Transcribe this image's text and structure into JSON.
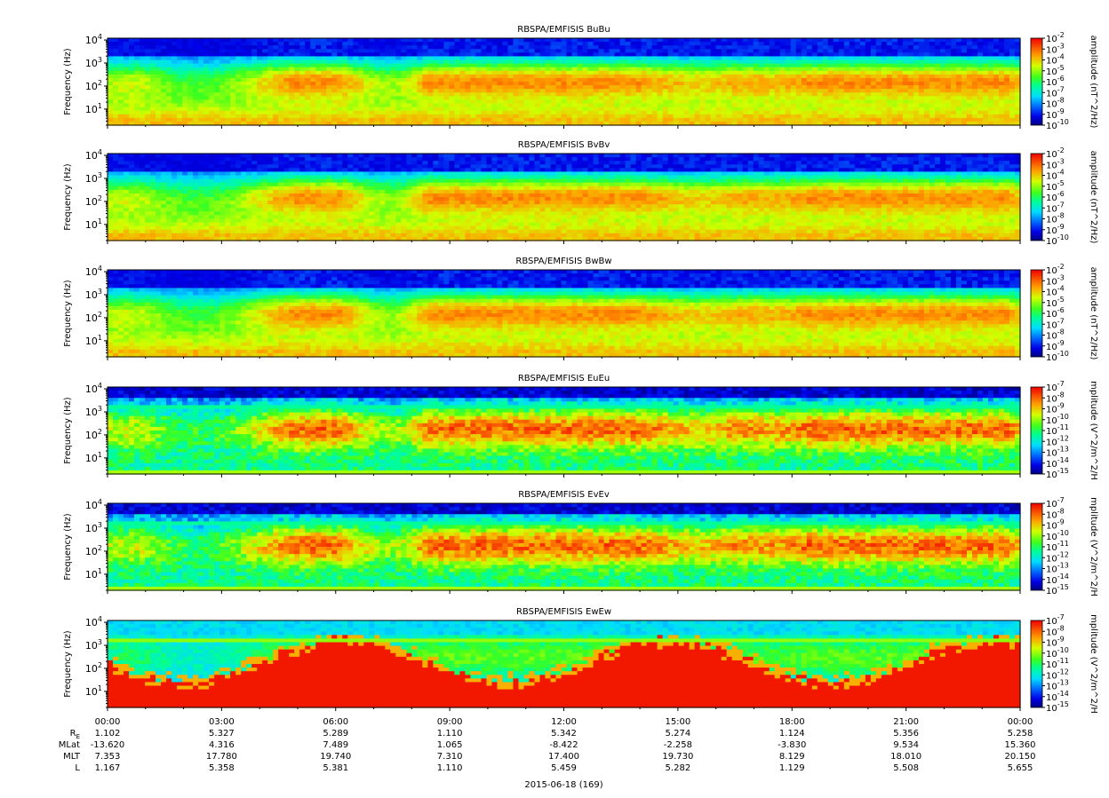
{
  "chart_data": [
    {
      "type": "heatmap",
      "title": "RBSPA/EMFISIS  BuBu",
      "ylabel": "Frequency (Hz)",
      "yscale": "log",
      "ylim": [
        2,
        12000
      ],
      "yticks": [
        {
          "base": "10",
          "exp": "1"
        },
        {
          "base": "10",
          "exp": "2"
        },
        {
          "base": "10",
          "exp": "3"
        },
        {
          "base": "10",
          "exp": "4"
        }
      ],
      "xlim": [
        "00:00",
        "24:00"
      ],
      "colorbar": {
        "label": "amplitude (nT^2/Hz)",
        "scale": "log",
        "range": [
          -10,
          -2
        ],
        "ticks": [
          {
            "base": "10",
            "exp": "-2"
          },
          {
            "base": "10",
            "exp": "-3"
          },
          {
            "base": "10",
            "exp": "-4"
          },
          {
            "base": "10",
            "exp": "-5"
          },
          {
            "base": "10",
            "exp": "-6"
          },
          {
            "base": "10",
            "exp": "-7"
          },
          {
            "base": "10",
            "exp": "-8"
          },
          {
            "base": "10",
            "exp": "-9"
          },
          {
            "base": "10",
            "exp": "-10"
          }
        ]
      },
      "style": "mag"
    },
    {
      "type": "heatmap",
      "title": "RBSPA/EMFISIS  BvBv",
      "ylabel": "Frequency (Hz)",
      "yscale": "log",
      "ylim": [
        2,
        12000
      ],
      "yticks": [
        {
          "base": "10",
          "exp": "1"
        },
        {
          "base": "10",
          "exp": "2"
        },
        {
          "base": "10",
          "exp": "3"
        },
        {
          "base": "10",
          "exp": "4"
        }
      ],
      "xlim": [
        "00:00",
        "24:00"
      ],
      "colorbar": {
        "label": "amplitude (nT^2/Hz)",
        "scale": "log",
        "range": [
          -10,
          -2
        ],
        "ticks": [
          {
            "base": "10",
            "exp": "-2"
          },
          {
            "base": "10",
            "exp": "-3"
          },
          {
            "base": "10",
            "exp": "-4"
          },
          {
            "base": "10",
            "exp": "-5"
          },
          {
            "base": "10",
            "exp": "-6"
          },
          {
            "base": "10",
            "exp": "-7"
          },
          {
            "base": "10",
            "exp": "-8"
          },
          {
            "base": "10",
            "exp": "-9"
          },
          {
            "base": "10",
            "exp": "-10"
          }
        ]
      },
      "style": "mag"
    },
    {
      "type": "heatmap",
      "title": "RBSPA/EMFISIS  BwBw",
      "ylabel": "Frequency (Hz)",
      "yscale": "log",
      "ylim": [
        2,
        12000
      ],
      "yticks": [
        {
          "base": "10",
          "exp": "1"
        },
        {
          "base": "10",
          "exp": "2"
        },
        {
          "base": "10",
          "exp": "3"
        },
        {
          "base": "10",
          "exp": "4"
        }
      ],
      "xlim": [
        "00:00",
        "24:00"
      ],
      "colorbar": {
        "label": "amplitude (nT^2/Hz)",
        "scale": "log",
        "range": [
          -10,
          -2
        ],
        "ticks": [
          {
            "base": "10",
            "exp": "-2"
          },
          {
            "base": "10",
            "exp": "-3"
          },
          {
            "base": "10",
            "exp": "-4"
          },
          {
            "base": "10",
            "exp": "-5"
          },
          {
            "base": "10",
            "exp": "-6"
          },
          {
            "base": "10",
            "exp": "-7"
          },
          {
            "base": "10",
            "exp": "-8"
          },
          {
            "base": "10",
            "exp": "-9"
          },
          {
            "base": "10",
            "exp": "-10"
          }
        ]
      },
      "style": "mag"
    },
    {
      "type": "heatmap",
      "title": "RBSPA/EMFISIS  EuEu",
      "ylabel": "Frequency (Hz)",
      "yscale": "log",
      "ylim": [
        2,
        12000
      ],
      "yticks": [
        {
          "base": "10",
          "exp": "1"
        },
        {
          "base": "10",
          "exp": "2"
        },
        {
          "base": "10",
          "exp": "3"
        },
        {
          "base": "10",
          "exp": "4"
        }
      ],
      "xlim": [
        "00:00",
        "24:00"
      ],
      "colorbar": {
        "label": "mplitude (V^2/m^2/H",
        "scale": "log",
        "range": [
          -15,
          -7
        ],
        "ticks": [
          {
            "base": "10",
            "exp": "-7"
          },
          {
            "base": "10",
            "exp": "-8"
          },
          {
            "base": "10",
            "exp": "-9"
          },
          {
            "base": "10",
            "exp": "-10"
          },
          {
            "base": "10",
            "exp": "-11"
          },
          {
            "base": "10",
            "exp": "-12"
          },
          {
            "base": "10",
            "exp": "-13"
          },
          {
            "base": "10",
            "exp": "-14"
          },
          {
            "base": "10",
            "exp": "-15"
          }
        ]
      },
      "style": "elec"
    },
    {
      "type": "heatmap",
      "title": "RBSPA/EMFISIS  EvEv",
      "ylabel": "Frequency (Hz)",
      "yscale": "log",
      "ylim": [
        2,
        12000
      ],
      "yticks": [
        {
          "base": "10",
          "exp": "1"
        },
        {
          "base": "10",
          "exp": "2"
        },
        {
          "base": "10",
          "exp": "3"
        },
        {
          "base": "10",
          "exp": "4"
        }
      ],
      "xlim": [
        "00:00",
        "24:00"
      ],
      "colorbar": {
        "label": "mplitude (V^2/m^2/H",
        "scale": "log",
        "range": [
          -15,
          -7
        ],
        "ticks": [
          {
            "base": "10",
            "exp": "-7"
          },
          {
            "base": "10",
            "exp": "-8"
          },
          {
            "base": "10",
            "exp": "-9"
          },
          {
            "base": "10",
            "exp": "-10"
          },
          {
            "base": "10",
            "exp": "-11"
          },
          {
            "base": "10",
            "exp": "-12"
          },
          {
            "base": "10",
            "exp": "-13"
          },
          {
            "base": "10",
            "exp": "-14"
          },
          {
            "base": "10",
            "exp": "-15"
          }
        ]
      },
      "style": "elec"
    },
    {
      "type": "heatmap",
      "title": "RBSPA/EMFISIS  EwEw",
      "ylabel": "Frequency (Hz)",
      "yscale": "log",
      "ylim": [
        2,
        12000
      ],
      "yticks": [
        {
          "base": "10",
          "exp": "1"
        },
        {
          "base": "10",
          "exp": "2"
        },
        {
          "base": "10",
          "exp": "3"
        },
        {
          "base": "10",
          "exp": "4"
        }
      ],
      "xlim": [
        "00:00",
        "24:00"
      ],
      "colorbar": {
        "label": "mplitude (V^2/m^2/H",
        "scale": "log",
        "range": [
          -15,
          -7
        ],
        "ticks": [
          {
            "base": "10",
            "exp": "-7"
          },
          {
            "base": "10",
            "exp": "-8"
          },
          {
            "base": "10",
            "exp": "-9"
          },
          {
            "base": "10",
            "exp": "-10"
          },
          {
            "base": "10",
            "exp": "-11"
          },
          {
            "base": "10",
            "exp": "-12"
          },
          {
            "base": "10",
            "exp": "-13"
          },
          {
            "base": "10",
            "exp": "-14"
          },
          {
            "base": "10",
            "exp": "-15"
          }
        ]
      },
      "style": "ew"
    }
  ],
  "x_axis": {
    "ticks": [
      "00:00",
      "03:00",
      "06:00",
      "09:00",
      "12:00",
      "15:00",
      "18:00",
      "21:00",
      "00:00"
    ],
    "minor_ticks_per_major": 2
  },
  "ephemeris": [
    {
      "label_base": "R",
      "label_sub": "E",
      "values": [
        "1.102",
        "5.327",
        "5.289",
        "1.110",
        "5.342",
        "5.274",
        "1.124",
        "5.356",
        "5.258"
      ]
    },
    {
      "label_base": "MLat",
      "label_sub": "",
      "values": [
        "-13.620",
        "4.316",
        "7.489",
        "1.065",
        "-8.422",
        "-2.258",
        "-3.830",
        "9.534",
        "15.360"
      ]
    },
    {
      "label_base": "MLT",
      "label_sub": "",
      "values": [
        "7.353",
        "17.780",
        "19.740",
        "7.310",
        "17.400",
        "19.730",
        "8.129",
        "18.010",
        "20.150"
      ]
    },
    {
      "label_base": "L",
      "label_sub": "",
      "values": [
        "1.167",
        "5.358",
        "5.381",
        "1.110",
        "5.459",
        "5.282",
        "1.129",
        "5.508",
        "5.655"
      ]
    }
  ],
  "date_label": "2015-06-18 (169)"
}
